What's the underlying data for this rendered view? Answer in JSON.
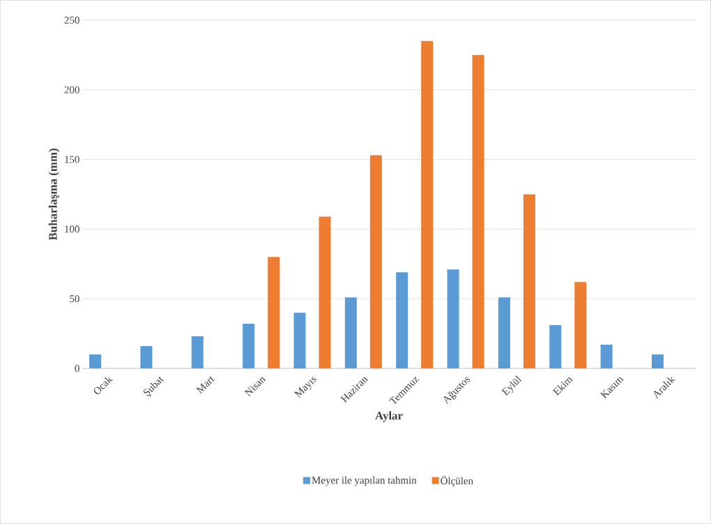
{
  "chart_data": {
    "type": "bar",
    "xlabel": "Aylar",
    "ylabel": "Buharlaşma (mm)",
    "categories": [
      "Ocak",
      "Şubat",
      "Mart",
      "Nisan",
      "Mayıs",
      "Haziran",
      "Temmuz",
      "Ağustos",
      "Eylül",
      "Ekim",
      "Kasım",
      "Aralık"
    ],
    "series": [
      {
        "name": "Meyer ile yapılan tahmin",
        "color": "#5b9bd5",
        "values": [
          10,
          16,
          23,
          32,
          40,
          51,
          69,
          71,
          51,
          31,
          17,
          10
        ]
      },
      {
        "name": "Ölçülen",
        "color": "#ed7d31",
        "values": [
          null,
          null,
          null,
          80,
          109,
          153,
          235,
          225,
          125,
          62,
          null,
          null
        ]
      }
    ],
    "ylim": [
      0,
      250
    ],
    "yticks": [
      0,
      50,
      100,
      150,
      200,
      250
    ],
    "grid": "y",
    "legend": "bottom"
  }
}
